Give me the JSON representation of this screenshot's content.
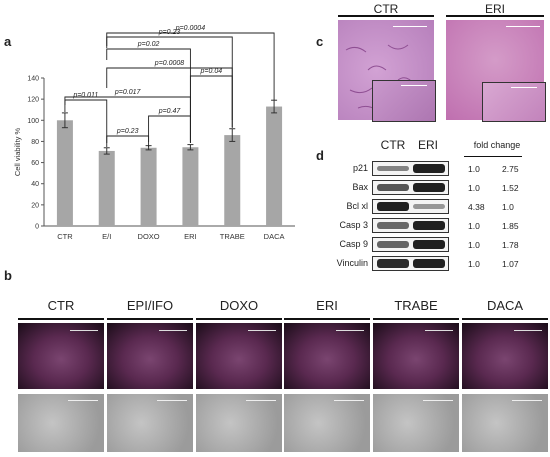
{
  "panels": {
    "a": "a",
    "b": "b",
    "c": "c",
    "d": "d"
  },
  "chart_data": {
    "type": "bar",
    "categories": [
      "CTR",
      "E/I",
      "DOXO",
      "ERI",
      "TRABE",
      "DACA"
    ],
    "values": [
      100,
      71,
      74,
      74.5,
      86,
      113
    ],
    "errors": [
      7,
      3,
      2,
      2.5,
      6,
      6
    ],
    "ylabel": "Cell viability %",
    "ylim": [
      0,
      140
    ],
    "yticks": [
      0,
      20,
      40,
      60,
      80,
      100,
      120,
      140
    ],
    "bar_color": "#a6a6a6",
    "comparisons": [
      {
        "from": "CTR",
        "to": "E/I",
        "label": "p=0.011"
      },
      {
        "from": "CTR",
        "to": "ERI",
        "label": "p=0.017"
      },
      {
        "from": "E/I",
        "to": "DOXO",
        "label": "p=0.23"
      },
      {
        "from": "DOXO",
        "to": "ERI",
        "label": "p=0.47"
      },
      {
        "from": "ERI",
        "to": "TRABE",
        "label": "p=0.04"
      },
      {
        "from": "E/I",
        "to": "TRABE",
        "label": "p=0.0008"
      },
      {
        "from": "E/I",
        "to": "ERI",
        "label": "p=0.02"
      },
      {
        "from": "E/I",
        "to": "TRABE",
        "label": "p=0.23"
      },
      {
        "from": "E/I",
        "to": "DACA",
        "label": "p=0.0004"
      }
    ]
  },
  "panel_b": {
    "labels": [
      "CTR",
      "EPI/IFO",
      "DOXO",
      "ERI",
      "TRABE",
      "DACA"
    ],
    "top_tint": "#5a2950",
    "bottom_tint": "#9b9b9b"
  },
  "panel_c": {
    "labels": [
      "CTR",
      "ERI"
    ],
    "tint_ctr": "#c58fc8",
    "tint_eri": "#c87fb9"
  },
  "panel_d": {
    "col_labels": [
      "CTR",
      "ERI"
    ],
    "fold_header": "fold change",
    "rows": [
      {
        "name": "p21",
        "fold": [
          "1.0",
          "2.75"
        ]
      },
      {
        "name": "Bax",
        "fold": [
          "1.0",
          "1.52"
        ]
      },
      {
        "name": "Bcl xl",
        "fold": [
          "4.38",
          "1.0"
        ]
      },
      {
        "name": "Casp 3",
        "fold": [
          "1.0",
          "1.85"
        ]
      },
      {
        "name": "Casp 9",
        "fold": [
          "1.0",
          "1.78"
        ]
      },
      {
        "name": "Vinculin",
        "fold": [
          "1.0",
          "1.07"
        ]
      }
    ]
  }
}
